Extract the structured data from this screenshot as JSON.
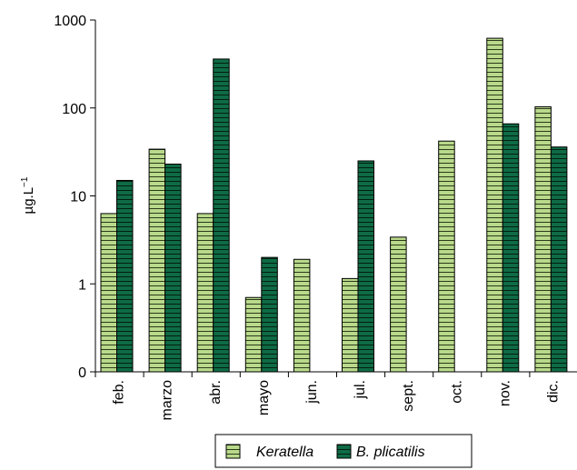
{
  "chart_data": {
    "type": "bar",
    "scale": "log",
    "categories": [
      "feb.",
      "marzo",
      "abr.",
      "mayo",
      "jun.",
      "jul.",
      "sept.",
      "oct.",
      "nov.",
      "dic."
    ],
    "series": [
      {
        "name": "Keratella",
        "color": "#b9d98b",
        "pattern": "horizontal-stripes",
        "values": [
          6.3,
          34,
          6.3,
          0.7,
          1.9,
          1.15,
          3.4,
          42,
          620,
          103
        ]
      },
      {
        "name": "B. plicatilis",
        "color": "#0e6b45",
        "pattern": "horizontal-stripes",
        "values": [
          15,
          23,
          360,
          2.0,
          null,
          25,
          null,
          null,
          66,
          36
        ]
      }
    ],
    "y_ticks": [
      "0",
      "1",
      "10",
      "100",
      "1000"
    ],
    "ylabel_base": "µg.L",
    "ylabel_exponent": "−1",
    "grid": false,
    "legend_position": "bottom"
  }
}
